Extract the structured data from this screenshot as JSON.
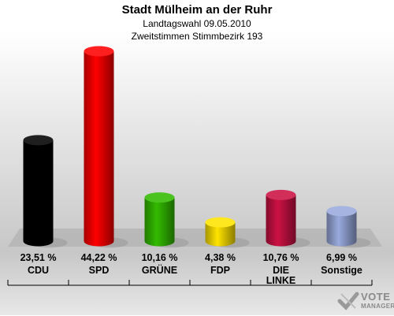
{
  "title": "Stadt Mülheim an der Ruhr",
  "subtitle1": "Landtagswahl 09.05.2010",
  "subtitle2": "Zweitstimmen Stimmbezirk 193",
  "logo": {
    "line1": "VOTE",
    "line2": "MANAGER"
  },
  "chart_data": {
    "type": "bar",
    "title": "Stadt Mülheim an der Ruhr",
    "subtitle": "Landtagswahl 09.05.2010 · Zweitstimmen Stimmbezirk 193",
    "categories": [
      "CDU",
      "SPD",
      "GRÜNE",
      "FDP",
      "DIE LINKE",
      "Sonstige"
    ],
    "values": [
      23.51,
      44.22,
      10.16,
      4.38,
      10.76,
      6.99
    ],
    "value_labels": [
      "23,51 %",
      "44,22 %",
      "10,16 %",
      "4,38 %",
      "10,76 %",
      "6,99 %"
    ],
    "colors": [
      "#000000",
      "#ff0000",
      "#33bb00",
      "#ffe400",
      "#cc1144",
      "#99aadd"
    ],
    "ylim": [
      0,
      50
    ],
    "grid": false,
    "legend": "none"
  }
}
